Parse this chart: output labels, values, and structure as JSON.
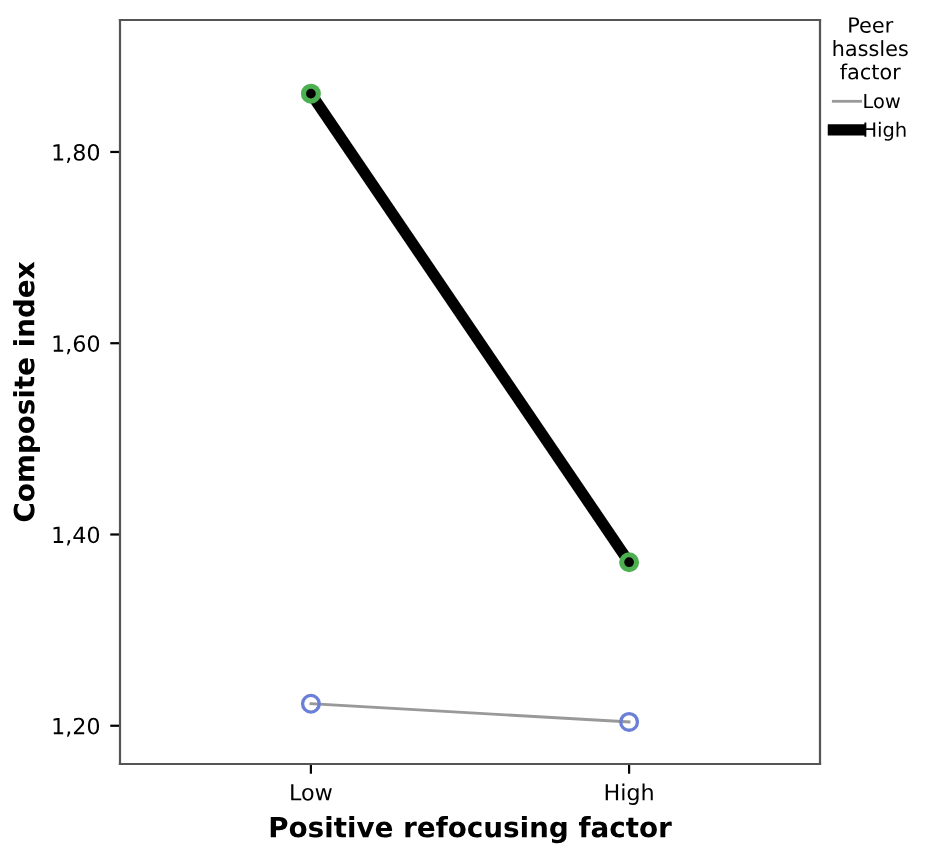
{
  "chart_data": {
    "type": "line",
    "xlabel": "Positive refocusing factor",
    "ylabel": "Composite index",
    "legend_title": "Peer\nhassles\nfactor",
    "legend": "right",
    "grid": false,
    "marker": "circle",
    "categories": [
      "Low",
      "High"
    ],
    "series": [
      {
        "name": "Low",
        "color": "#999999",
        "colors": [
          "#6b7fd7",
          "#6b7fd7"
        ],
        "values": [
          1.223,
          1.204
        ]
      },
      {
        "name": "High",
        "color": "#000000",
        "colors": [
          "#4caf50",
          "#4caf50"
        ],
        "values": [
          1.861,
          1.371
        ]
      }
    ],
    "ylim": [
      1.16,
      1.938
    ],
    "yticks": [
      {
        "value": 1.2,
        "label": "1,20"
      },
      {
        "value": 1.4,
        "label": "1,40"
      },
      {
        "value": 1.6,
        "label": "1,60"
      },
      {
        "value": 1.8,
        "label": "1,80"
      }
    ]
  }
}
